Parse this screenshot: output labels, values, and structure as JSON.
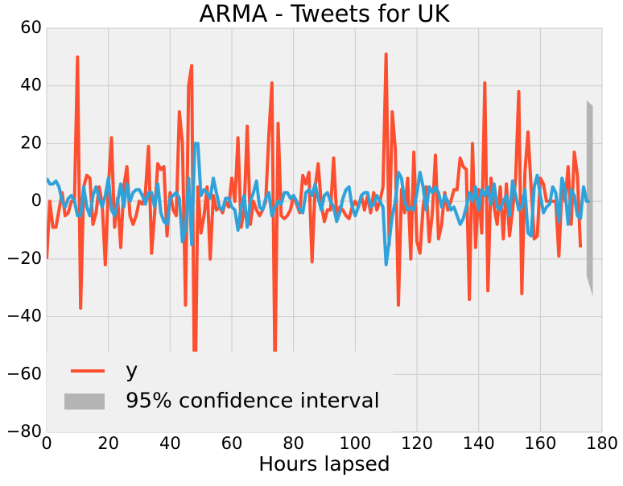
{
  "chart_data": {
    "type": "line",
    "title": "ARMA - Tweets for UK",
    "x_label": "Hours lapsed",
    "x": [
      0,
      1,
      2,
      3,
      4,
      5,
      6,
      7,
      8,
      9,
      10,
      11,
      12,
      13,
      14,
      15,
      16,
      17,
      18,
      19,
      20,
      21,
      22,
      23,
      24,
      25,
      26,
      27,
      28,
      29,
      30,
      31,
      32,
      33,
      34,
      35,
      36,
      37,
      38,
      39,
      40,
      41,
      42,
      43,
      44,
      45,
      46,
      47,
      48,
      49,
      50,
      51,
      52,
      53,
      54,
      55,
      56,
      57,
      58,
      59,
      60,
      61,
      62,
      63,
      64,
      65,
      66,
      67,
      68,
      69,
      70,
      71,
      72,
      73,
      74,
      75,
      76,
      77,
      78,
      79,
      80,
      81,
      82,
      83,
      84,
      85,
      86,
      87,
      88,
      89,
      90,
      91,
      92,
      93,
      94,
      95,
      96,
      97,
      98,
      99,
      100,
      101,
      102,
      103,
      104,
      105,
      106,
      107,
      108,
      109,
      110,
      111,
      112,
      113,
      114,
      115,
      116,
      117,
      118,
      119,
      120,
      121,
      122,
      123,
      124,
      125,
      126,
      127,
      128,
      129,
      130,
      131,
      132,
      133,
      134,
      135,
      136,
      137,
      138,
      139,
      140,
      141,
      142,
      143,
      144,
      145,
      146,
      147,
      148,
      149,
      150,
      151,
      152,
      153,
      154,
      155,
      156,
      157,
      158,
      159,
      160,
      161,
      162,
      163,
      164,
      165,
      166,
      167,
      168,
      169,
      170,
      171,
      172,
      173,
      174,
      175,
      176
    ],
    "series": [
      {
        "name": "y",
        "color": "#fc4f30",
        "values": [
          -20,
          0,
          -9,
          -9,
          -3,
          3,
          -5,
          -4,
          0,
          0,
          50,
          -37,
          5,
          9,
          8,
          -8,
          -4,
          5,
          -1,
          -22,
          5,
          22,
          -9,
          1,
          -16,
          5,
          12,
          -5,
          -8,
          -5,
          0,
          -1,
          3,
          19,
          -18,
          -4,
          13,
          11,
          12,
          -12,
          3,
          -3,
          -5,
          31,
          20,
          -36,
          40,
          47,
          -79,
          5,
          -11,
          -5,
          5,
          -20,
          2,
          -3,
          -2,
          -4,
          0,
          -2,
          8,
          0,
          22,
          -9,
          -3,
          26,
          -8,
          0,
          -3,
          -5,
          -3,
          0,
          23,
          41,
          -60,
          27,
          -5,
          -6,
          -5,
          -3,
          2,
          -1,
          -4,
          9,
          6,
          10,
          -21,
          5,
          13,
          -1,
          -7,
          -3,
          -3,
          15,
          -5,
          -2,
          -3,
          -5,
          -6,
          -2,
          0,
          -2,
          2,
          -3,
          2,
          -4,
          3,
          -3,
          0,
          5,
          51,
          -15,
          31,
          18,
          -36,
          4,
          -4,
          8,
          -20,
          17,
          -14,
          -18,
          -2,
          5,
          -14,
          -4,
          16,
          -13,
          -8,
          3,
          -3,
          0,
          4,
          4,
          15,
          12,
          11,
          -34,
          20,
          -16,
          4,
          -11,
          41,
          -31,
          8,
          -2,
          -8,
          5,
          -13,
          6,
          -12,
          -3,
          8,
          38,
          -32,
          10,
          24,
          5,
          -13,
          -12,
          8,
          6,
          0,
          0,
          0,
          0,
          -19,
          5,
          0,
          12,
          -8,
          17,
          9,
          -16,
          null,
          null,
          null
        ]
      },
      {
        "color": "#30a2da",
        "values": [
          8,
          6,
          6,
          7,
          5,
          0,
          -2,
          1,
          2,
          0,
          -5,
          -5,
          5,
          -2,
          -5,
          2,
          5,
          1,
          -2,
          2,
          8,
          -3,
          -5,
          0,
          6,
          -2,
          6,
          0,
          3,
          4,
          4,
          2,
          -1,
          3,
          3,
          -2,
          6,
          -4,
          -7,
          -8,
          1,
          2,
          3,
          1,
          -14,
          -10,
          8,
          -15,
          20,
          20,
          2,
          4,
          3,
          1,
          8,
          3,
          -2,
          -3,
          1,
          1,
          -2,
          -3,
          -10,
          -2,
          2,
          -9,
          0,
          3,
          7,
          -2,
          -3,
          1,
          3,
          -5,
          -2,
          0,
          -1,
          3,
          3,
          1,
          2,
          0,
          -3,
          -4,
          3,
          4,
          2,
          6,
          1,
          -3,
          2,
          3,
          0,
          -2,
          -7,
          -4,
          1,
          4,
          5,
          -2,
          -5,
          -2,
          2,
          3,
          3,
          -2,
          -1,
          2,
          0,
          -2,
          -22,
          -14,
          -5,
          0,
          10,
          8,
          0,
          -3,
          -2,
          -3,
          3,
          10,
          5,
          -3,
          5,
          3,
          5,
          3,
          -2,
          2,
          0,
          -3,
          -2,
          -5,
          -8,
          -6,
          -2,
          3,
          0,
          5,
          -3,
          4,
          2,
          5,
          -1,
          6,
          -2,
          -3,
          0,
          2,
          -5,
          7,
          2,
          -3,
          -2,
          4,
          -11,
          -12,
          5,
          9,
          2,
          -4,
          -2,
          -1,
          5,
          3,
          -7,
          8,
          4,
          -8,
          4,
          2,
          -5,
          -6,
          5,
          0,
          0
        ]
      }
    ],
    "interval": {
      "name": "95% confidence interval",
      "color": "#b4b4b4",
      "x": [
        175,
        177
      ],
      "lower": [
        -26,
        -33
      ],
      "upper": [
        35,
        33
      ]
    },
    "xlim": [
      0,
      180
    ],
    "xticks": [
      0,
      20,
      40,
      60,
      80,
      100,
      120,
      140,
      160,
      180
    ],
    "ylim": [
      -80,
      60
    ],
    "yticks": [
      {
        "value": -80,
        "label": "−80"
      },
      {
        "value": -60,
        "label": "−60"
      },
      {
        "value": -40,
        "label": "−40"
      },
      {
        "value": -20,
        "label": "−20"
      },
      0,
      20,
      40,
      60
    ],
    "grid": true,
    "legend": "lower left"
  }
}
